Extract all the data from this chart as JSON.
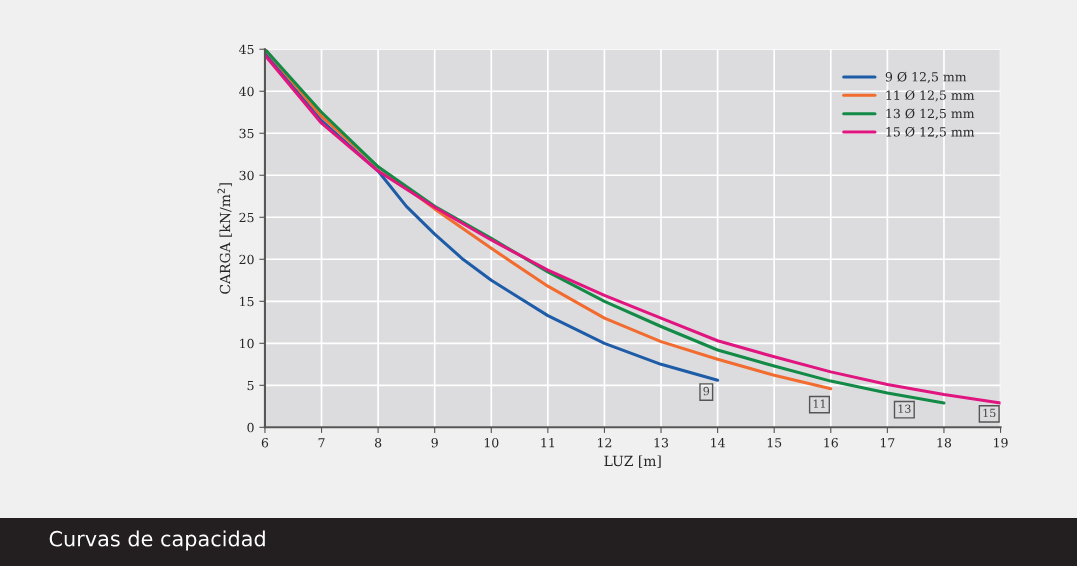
{
  "chart_data": {
    "type": "line",
    "title": "Curvas de capacidad",
    "xlabel": "LUZ [m]",
    "ylabel": "CARGA [kN/m$^{2}$]",
    "xlim": [
      6,
      19
    ],
    "xticks": [
      6,
      7,
      8,
      9,
      10,
      11,
      12,
      13,
      14,
      15,
      16,
      17,
      18,
      19
    ],
    "ylim": [
      0,
      45
    ],
    "yticks": [
      0,
      5,
      10,
      15,
      20,
      25,
      30,
      35,
      40,
      45
    ],
    "grid": true,
    "legend": "top right",
    "marker": "none",
    "line_style": "solid",
    "series": [
      {
        "name": "9 Ø 12,5 mm",
        "color": "#1f5ca8",
        "x": [
          6,
          7,
          8,
          8.5,
          9,
          9.5,
          10,
          11,
          12,
          13,
          14
        ],
        "values": [
          44.5,
          36.5,
          30.5,
          26.3,
          23,
          20,
          17.5,
          13.3,
          10,
          7.5,
          5.6
        ]
      },
      {
        "name": "11 Ø 12,5 mm",
        "color": "#f26b2f",
        "x": [
          6,
          7,
          8,
          9,
          10,
          11,
          12,
          13,
          14,
          15,
          16
        ],
        "values": [
          45,
          37,
          31,
          26,
          21.3,
          16.8,
          13,
          10.2,
          8.1,
          6.2,
          4.6
        ]
      },
      {
        "name": "13 Ø 12,5 mm",
        "color": "#138a45",
        "x": [
          6,
          7,
          8,
          9,
          10,
          11,
          12,
          13,
          14,
          15,
          16,
          17,
          18
        ],
        "values": [
          45,
          37.5,
          31,
          26.3,
          22.5,
          18.5,
          15,
          12,
          9.2,
          7.3,
          5.5,
          4.1,
          2.9
        ]
      },
      {
        "name": "15 Ø 12,5 mm",
        "color": "#e0157f",
        "x": [
          6,
          7,
          8,
          9,
          10,
          11,
          12,
          13,
          14,
          15,
          16,
          17,
          18,
          19
        ],
        "values": [
          44.3,
          36.2,
          30.5,
          26.2,
          22.3,
          18.7,
          15.7,
          13,
          10.3,
          8.4,
          6.6,
          5.1,
          3.9,
          2.9
        ]
      }
    ],
    "annotations": [
      {
        "text": "9",
        "x": 13.8,
        "y": 4.2
      },
      {
        "text": "11",
        "x": 15.8,
        "y": 2.7
      },
      {
        "text": "13",
        "x": 17.3,
        "y": 2.1
      },
      {
        "text": "15",
        "x": 18.8,
        "y": 1.6
      }
    ]
  }
}
